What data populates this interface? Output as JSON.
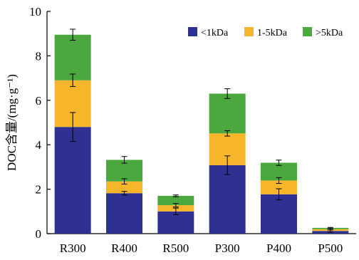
{
  "chart_data": {
    "type": "bar",
    "stacked": true,
    "categories": [
      "R300",
      "R400",
      "R500",
      "P300",
      "P400",
      "P500"
    ],
    "series": [
      {
        "name": "<1kDa",
        "color": "#2e3192",
        "values": [
          4.8,
          1.82,
          1.0,
          3.08,
          1.77,
          0.12
        ],
        "errors": [
          0.65,
          0.08,
          0.15,
          0.42,
          0.25,
          0.05
        ]
      },
      {
        "name": "1-5kDa",
        "color": "#f7b52c",
        "values": [
          2.1,
          0.53,
          0.28,
          1.43,
          0.62,
          0.08
        ],
        "errors": [
          0.28,
          0.12,
          0.08,
          0.12,
          0.13,
          0.03
        ]
      },
      {
        "name": ">5kDa",
        "color": "#4aa83f",
        "values": [
          2.05,
          0.97,
          0.42,
          1.79,
          0.8,
          0.06
        ],
        "errors": [
          0.25,
          0.15,
          0.04,
          0.22,
          0.12,
          0.02
        ]
      }
    ],
    "xlabel": "",
    "ylabel": "DOC含量/(mg·g⁻¹)",
    "ylim": [
      0,
      10
    ],
    "yticks": [
      "0",
      "2",
      "4",
      "6",
      "8",
      "10"
    ],
    "grid": false,
    "legend_position": "top-right"
  }
}
